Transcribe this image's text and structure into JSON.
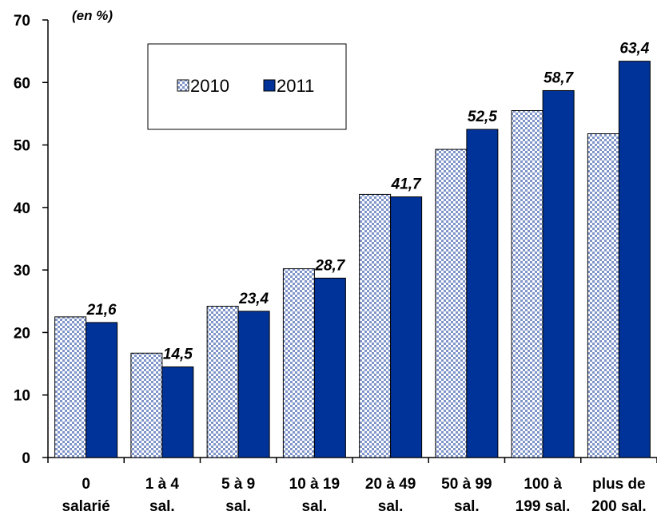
{
  "chart_data": {
    "type": "bar",
    "unit_label": "(en %)",
    "categories": [
      [
        "0",
        "salarié"
      ],
      [
        "1 à 4",
        "sal."
      ],
      [
        "5 à 9",
        "sal."
      ],
      [
        "10 à 19",
        "sal."
      ],
      [
        "20 à 49",
        "sal."
      ],
      [
        "50 à 99",
        "sal."
      ],
      [
        "100 à",
        "199 sal."
      ],
      [
        "plus de",
        "200 sal."
      ]
    ],
    "series": [
      {
        "name": "2010",
        "values": [
          22.5,
          16.7,
          24.2,
          30.2,
          42.1,
          49.3,
          55.5,
          51.8
        ],
        "color": "#b8c8e8",
        "pattern": "checker"
      },
      {
        "name": "2011",
        "values": [
          21.6,
          14.5,
          23.4,
          28.7,
          41.7,
          52.5,
          58.7,
          63.4
        ],
        "color": "#003399"
      }
    ],
    "data_labels": [
      "21,6",
      "14,5",
      "23,4",
      "28,7",
      "41,7",
      "52,5",
      "58,7",
      "63,4"
    ],
    "ylim": [
      0,
      70
    ],
    "yticks": [
      "0",
      "10",
      "20",
      "30",
      "40",
      "50",
      "60",
      "70"
    ],
    "legend_position": "top-left",
    "grid": false
  }
}
